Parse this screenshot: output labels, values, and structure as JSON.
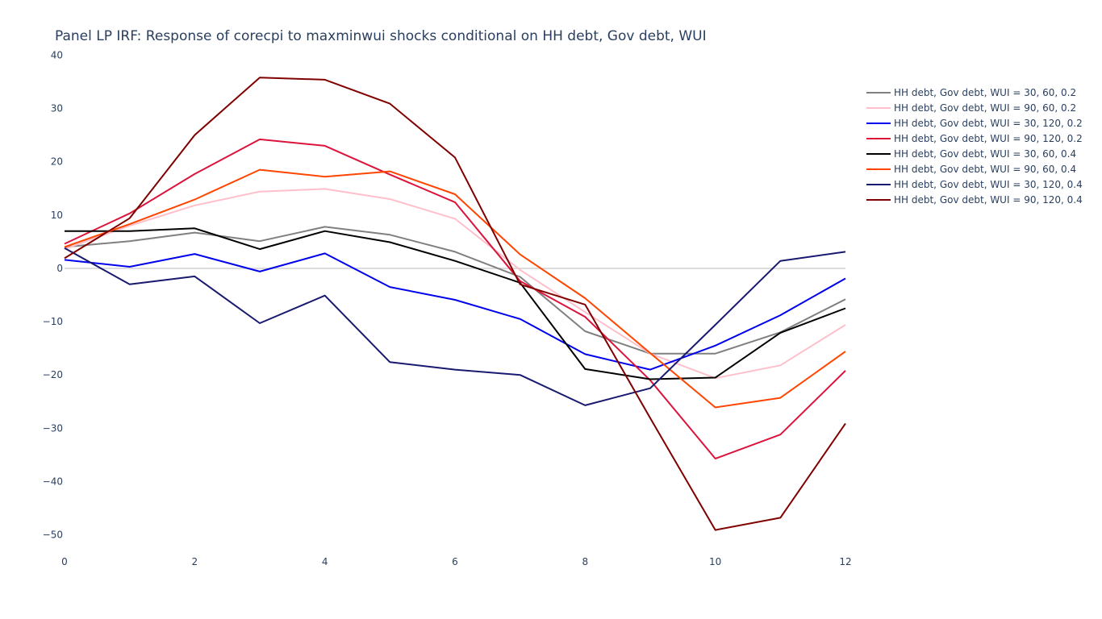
{
  "chart_data": {
    "type": "line",
    "title": "Panel LP IRF: Response of corecpi to maxminwui shocks conditional on HH debt, Gov debt, WUI",
    "xlabel": "",
    "ylabel": "",
    "x": [
      0,
      1,
      2,
      3,
      4,
      5,
      6,
      7,
      8,
      9,
      10,
      11,
      12
    ],
    "xlim": [
      0,
      12
    ],
    "ylim": [
      -54,
      44
    ],
    "x_ticks": [
      0,
      2,
      4,
      6,
      8,
      10,
      12
    ],
    "x_tick_labels": [
      "0",
      "2",
      "4",
      "6",
      "8",
      "10",
      "12"
    ],
    "y_ticks": [
      40,
      30,
      20,
      10,
      0,
      -10,
      -20,
      -30,
      -40,
      -50
    ],
    "y_tick_labels": [
      "40",
      "30",
      "20",
      "10",
      "0",
      "−10",
      "−20",
      "−30",
      "−40",
      "−50"
    ],
    "zero_line": true,
    "grid": false,
    "legend_position": "top-right",
    "series": [
      {
        "name": "HH debt, Gov debt, WUI = 30, 60, 0.2",
        "color": "#808080",
        "values": [
          4.0,
          5.1,
          6.7,
          5.1,
          7.8,
          6.3,
          3.1,
          -1.6,
          -11.8,
          -16.0,
          -16.0,
          -12.0,
          -5.8
        ]
      },
      {
        "name": "HH debt, Gov debt, WUI = 90, 60, 0.2",
        "color": "#ffc0cb",
        "values": [
          3.6,
          8.0,
          11.8,
          14.4,
          14.9,
          13.0,
          9.3,
          -0.3,
          -8.2,
          -16.0,
          -20.6,
          -18.2,
          -10.6
        ]
      },
      {
        "name": "HH debt, Gov debt, WUI = 30, 120, 0.2",
        "color": "#0000ee",
        "values": [
          1.6,
          0.3,
          2.7,
          -0.6,
          2.8,
          -3.5,
          -5.9,
          -9.5,
          -16.1,
          -19.0,
          -14.5,
          -8.8,
          -1.9
        ]
      },
      {
        "name": "HH debt, Gov debt, WUI = 90, 120, 0.2",
        "color": "#dc143c",
        "values": [
          4.6,
          10.3,
          17.7,
          24.2,
          23.0,
          17.6,
          12.4,
          -2.4,
          -9.1,
          -21.0,
          -35.7,
          -31.2,
          -19.2
        ]
      },
      {
        "name": "HH debt, Gov debt, WUI = 30, 60, 0.4",
        "color": "#000000",
        "values": [
          7.0,
          7.0,
          7.5,
          3.6,
          7.0,
          4.9,
          1.4,
          -2.7,
          -18.9,
          -20.8,
          -20.5,
          -12.1,
          -7.5
        ]
      },
      {
        "name": "HH debt, Gov debt, WUI = 90, 60, 0.4",
        "color": "#ff4500",
        "values": [
          4.0,
          8.3,
          12.9,
          18.5,
          17.2,
          18.2,
          13.9,
          2.6,
          -5.6,
          -15.9,
          -26.1,
          -24.3,
          -15.6
        ]
      },
      {
        "name": "HH debt, Gov debt, WUI = 30, 120, 0.4",
        "color": "#191970",
        "values": [
          3.8,
          -3.0,
          -1.5,
          -10.3,
          -5.1,
          -17.6,
          -19.0,
          -20.0,
          -25.7,
          -22.5,
          -10.6,
          1.4,
          3.1
        ]
      },
      {
        "name": "HH debt, Gov debt, WUI = 90, 120, 0.4",
        "color": "#800000",
        "values": [
          1.9,
          9.4,
          25.0,
          35.8,
          35.4,
          30.9,
          20.8,
          -3.0,
          -6.8,
          -28.1,
          -49.1,
          -46.8,
          -29.1
        ]
      }
    ]
  }
}
